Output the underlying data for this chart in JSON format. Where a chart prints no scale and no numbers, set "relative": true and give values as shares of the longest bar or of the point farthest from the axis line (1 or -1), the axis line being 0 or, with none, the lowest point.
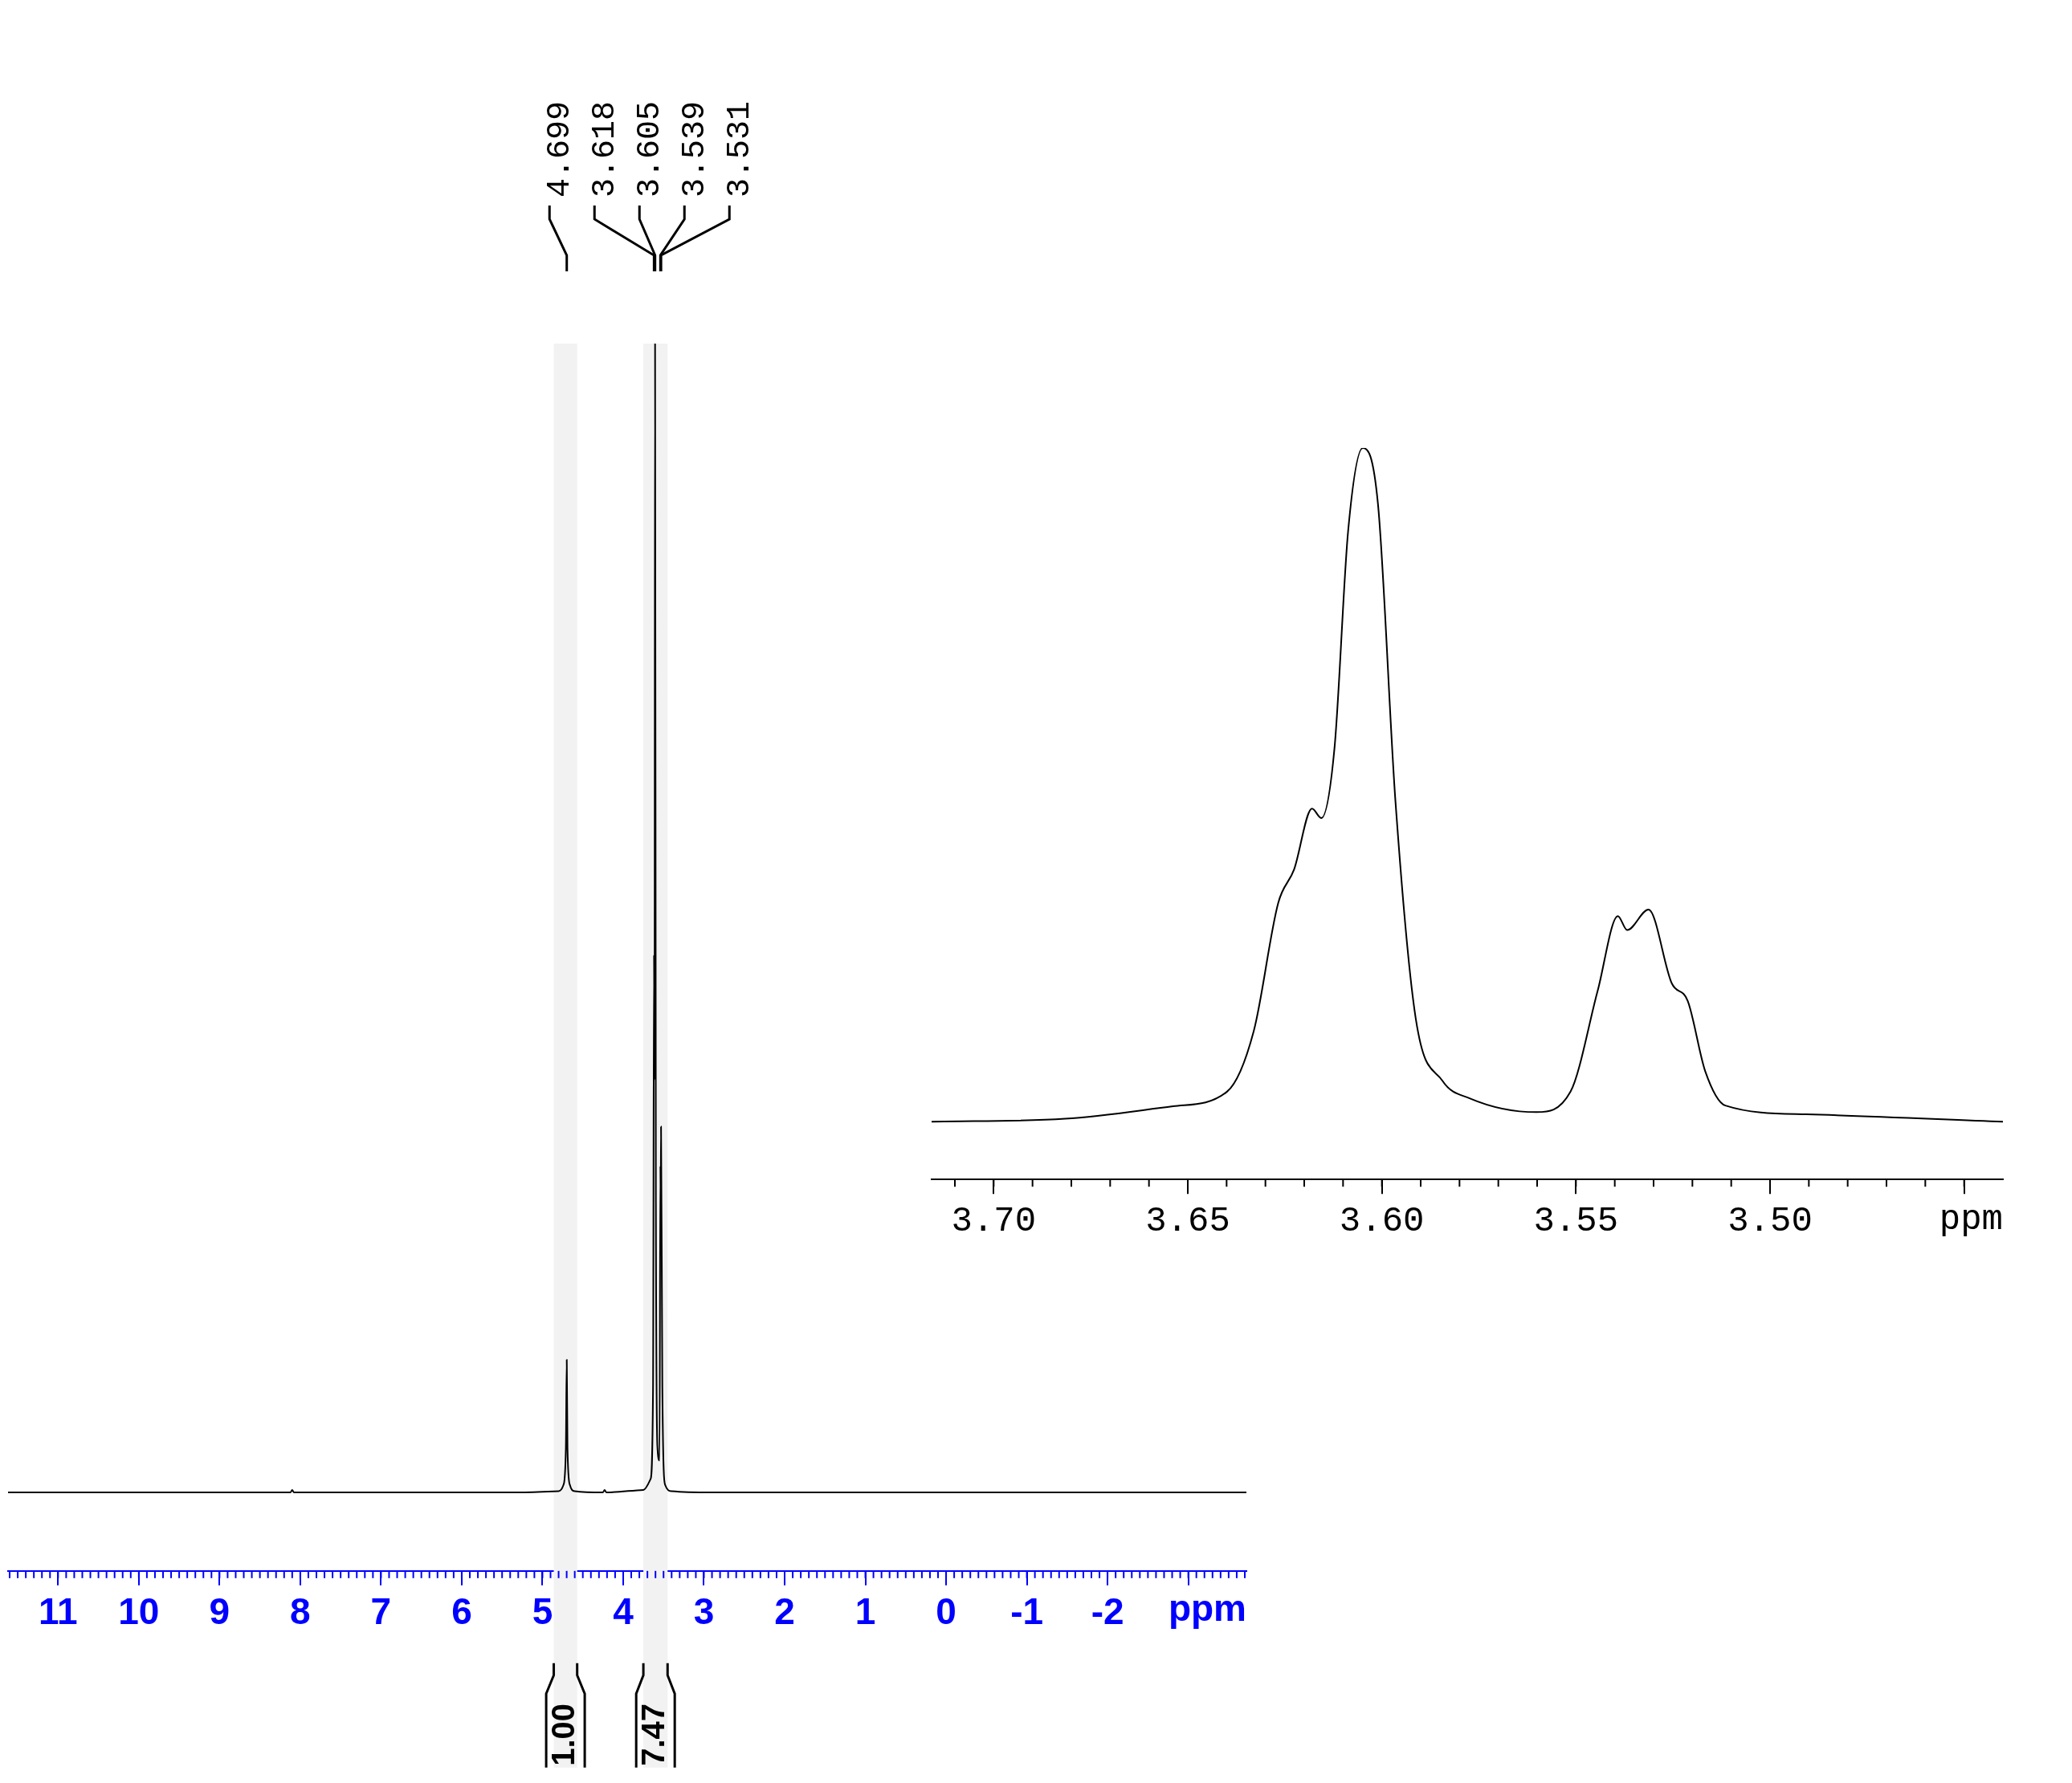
{
  "chart_data": [
    {
      "type": "line",
      "relative": true,
      "xlabel": "ppm",
      "marker": "none",
      "tick_labels": "x",
      "color": "#000000",
      "xlim": [
        11.62,
        -3.72
      ],
      "xticks": [
        11,
        10,
        9,
        8,
        7,
        6,
        5,
        4,
        3,
        2,
        1,
        0,
        -1,
        -2,
        {
          "value": -3,
          "label": null
        }
      ],
      "x": [
        11.62,
        8.12,
        8.1,
        8.08,
        5.3,
        4.8,
        4.74,
        4.71,
        4.699,
        4.69,
        4.66,
        4.6,
        4.25,
        4.23,
        4.21,
        3.75,
        3.66,
        3.63,
        3.618,
        3.612,
        3.605,
        3.595,
        3.575,
        3.55,
        3.539,
        3.535,
        3.531,
        3.515,
        3.48,
        3.4,
        2.9,
        -3.72
      ],
      "values": [
        0.064,
        0.064,
        0.066,
        0.064,
        0.064,
        0.065,
        0.07,
        0.1,
        0.172,
        0.1,
        0.07,
        0.065,
        0.064,
        0.066,
        0.064,
        0.066,
        0.075,
        0.15,
        0.502,
        0.4,
        1,
        0.3,
        0.1,
        0.09,
        0.33,
        0.3,
        0.362,
        0.15,
        0.07,
        0.065,
        0.064,
        0.064
      ],
      "annotations": [
        "4.699",
        "3.618",
        "3.605",
        "3.539",
        "3.531"
      ],
      "bands": [
        {
          "axis": "x",
          "from": 4.86,
          "to": 4.57,
          "label": "1.00",
          "color": "#f2f2f2"
        },
        {
          "axis": "x",
          "from": 3.75,
          "to": 3.45,
          "label": "7.47",
          "color": "#f2f2f2"
        }
      ]
    },
    {
      "type": "line",
      "relative": true,
      "xlabel": "ppm",
      "marker": "none",
      "tick_labels": "x",
      "color": "#000000",
      "xlim": [
        3.716,
        3.44
      ],
      "xticks": [
        {
          "value": 3.7,
          "label": "3.70"
        },
        {
          "value": 3.65,
          "label": "3.65"
        },
        {
          "value": 3.6,
          "label": "3.60"
        },
        {
          "value": 3.55,
          "label": "3.55"
        },
        {
          "value": 3.5,
          "label": "3.50"
        },
        {
          "value": 3.45,
          "label": null
        }
      ],
      "x": [
        3.716,
        3.6816,
        3.6538,
        3.6399,
        3.633,
        3.6267,
        3.6226,
        3.618,
        3.6156,
        3.6122,
        3.6087,
        3.6049,
        3.601,
        3.5965,
        3.5913,
        3.5844,
        3.5774,
        3.5601,
        3.5514,
        3.5444,
        3.5392,
        3.5368,
        3.5313,
        3.5253,
        3.5212,
        3.5167,
        3.5115,
        3.4906,
        3.44
      ],
      "values": [
        0.079,
        0.083,
        0.1,
        0.12,
        0.203,
        0.378,
        0.424,
        0.507,
        0.494,
        0.59,
        0.886,
        1,
        0.923,
        0.517,
        0.221,
        0.135,
        0.111,
        0.092,
        0.12,
        0.258,
        0.36,
        0.341,
        0.369,
        0.268,
        0.244,
        0.148,
        0.101,
        0.089,
        0.079
      ]
    }
  ]
}
